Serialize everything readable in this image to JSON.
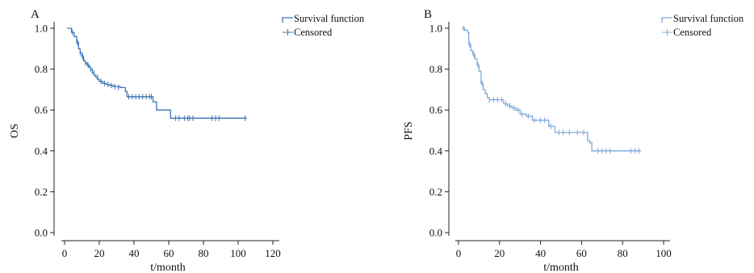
{
  "chart_data": [
    {
      "type": "line",
      "panel_label": "A",
      "title": "",
      "xlabel": "t/month",
      "ylabel": "OS",
      "xlim": [
        0,
        120
      ],
      "ylim": [
        0,
        1.0
      ],
      "xticks": [
        "0",
        "20",
        "40",
        "60",
        "80",
        "100",
        "120"
      ],
      "yticks": [
        "0.0",
        "0.2",
        "0.4",
        "0.6",
        "0.8",
        "1.0"
      ],
      "grid": false,
      "legend": {
        "position": "top-right",
        "entries": [
          "Survival function",
          "Censored"
        ]
      },
      "line_color": "#3a74b8",
      "series": [
        {
          "name": "Survival function",
          "style": "step",
          "x": [
            1.5,
            4,
            5.5,
            7,
            8,
            9,
            10,
            11,
            12,
            13,
            14,
            15,
            16,
            17,
            18,
            19,
            20,
            21,
            22,
            24,
            26,
            28,
            32,
            35,
            36,
            51,
            53,
            57,
            61,
            105
          ],
          "y": [
            1.0,
            0.98,
            0.96,
            0.93,
            0.9,
            0.88,
            0.86,
            0.84,
            0.83,
            0.82,
            0.81,
            0.8,
            0.78,
            0.77,
            0.76,
            0.75,
            0.74,
            0.74,
            0.73,
            0.725,
            0.72,
            0.715,
            0.71,
            0.69,
            0.665,
            0.64,
            0.6,
            0.6,
            0.56,
            0.56
          ]
        },
        {
          "name": "Censored",
          "style": "marks",
          "x": [
            4.5,
            7.5,
            9,
            10.5,
            12,
            13.5,
            15,
            17,
            19,
            21,
            23,
            25,
            27,
            29,
            31,
            37,
            39,
            41,
            43,
            45,
            47,
            49,
            50,
            64,
            66,
            69,
            71,
            72,
            74,
            85,
            87,
            89,
            104
          ],
          "y": [
            0.98,
            0.93,
            0.88,
            0.86,
            0.83,
            0.82,
            0.8,
            0.78,
            0.76,
            0.74,
            0.73,
            0.725,
            0.72,
            0.715,
            0.71,
            0.665,
            0.665,
            0.665,
            0.665,
            0.665,
            0.665,
            0.665,
            0.665,
            0.56,
            0.56,
            0.56,
            0.56,
            0.56,
            0.56,
            0.56,
            0.56,
            0.56,
            0.56
          ]
        }
      ]
    },
    {
      "type": "line",
      "panel_label": "B",
      "title": "",
      "xlabel": "t/month",
      "ylabel": "PFS",
      "xlim": [
        0,
        100
      ],
      "ylim": [
        0,
        1.0
      ],
      "xticks": [
        "0",
        "20",
        "40",
        "60",
        "80",
        "100"
      ],
      "yticks": [
        "0.0",
        "0.2",
        "0.4",
        "0.6",
        "0.8",
        "1.0"
      ],
      "grid": false,
      "legend": {
        "position": "top-right",
        "entries": [
          "Survival function",
          "Censored"
        ]
      },
      "line_color": "#7da8d8",
      "series": [
        {
          "name": "Survival function",
          "style": "step",
          "x": [
            1.5,
            3,
            4.5,
            5,
            6,
            7,
            8,
            9,
            10,
            11,
            12,
            13,
            14,
            15,
            20,
            22,
            24,
            26,
            28,
            30,
            33,
            36,
            44,
            47,
            52,
            63,
            64,
            65,
            89
          ],
          "y": [
            1.0,
            0.99,
            0.98,
            0.92,
            0.89,
            0.87,
            0.85,
            0.82,
            0.79,
            0.73,
            0.7,
            0.68,
            0.66,
            0.65,
            0.65,
            0.63,
            0.62,
            0.61,
            0.6,
            0.58,
            0.57,
            0.55,
            0.52,
            0.49,
            0.49,
            0.45,
            0.44,
            0.4,
            0.4
          ]
        },
        {
          "name": "Censored",
          "style": "marks",
          "x": [
            2.5,
            5.5,
            7.5,
            9.5,
            11.5,
            15,
            17,
            19,
            21,
            23,
            25,
            27,
            29,
            31,
            34,
            37,
            40,
            42,
            45,
            49,
            51,
            54,
            58,
            61,
            68,
            70,
            72,
            74,
            84,
            86,
            88
          ],
          "y": [
            1.0,
            0.92,
            0.87,
            0.82,
            0.73,
            0.65,
            0.65,
            0.65,
            0.65,
            0.63,
            0.62,
            0.61,
            0.6,
            0.58,
            0.57,
            0.55,
            0.55,
            0.55,
            0.52,
            0.49,
            0.49,
            0.49,
            0.49,
            0.49,
            0.4,
            0.4,
            0.4,
            0.4,
            0.4,
            0.4,
            0.4
          ]
        }
      ]
    }
  ]
}
